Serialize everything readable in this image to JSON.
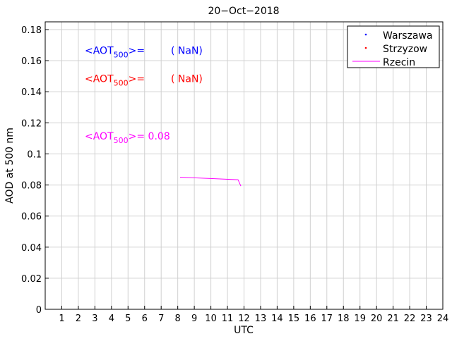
{
  "chart_data": {
    "type": "line",
    "title": "20−Oct−2018",
    "xlabel": "UTC",
    "ylabel": "AOD at 500 nm",
    "xlim": [
      0,
      24
    ],
    "ylim": [
      0,
      0.185
    ],
    "xticks": [
      1,
      2,
      3,
      4,
      5,
      6,
      7,
      8,
      9,
      10,
      11,
      12,
      13,
      14,
      15,
      16,
      17,
      18,
      19,
      20,
      21,
      22,
      23,
      24
    ],
    "yticks": [
      0,
      0.02,
      0.04,
      0.06,
      0.08,
      0.1,
      0.12,
      0.14,
      0.16,
      0.18
    ],
    "ytick_labels": [
      "0",
      "0.02",
      "0.04",
      "0.06",
      "0.08",
      "0.1",
      "0.12",
      "0.14",
      "0.16",
      "0.18"
    ],
    "grid": true,
    "legend_position": "top-right",
    "series": [
      {
        "name": "Warszawa",
        "color": "#0000ff",
        "marker": "dot",
        "x": [],
        "y": []
      },
      {
        "name": "Strzyzow",
        "color": "#ff0000",
        "marker": "dot",
        "x": [],
        "y": []
      },
      {
        "name": "Rzecin",
        "color": "#ff00ff",
        "marker": "line",
        "x": [
          8.14,
          11.64,
          11.81
        ],
        "y": [
          0.085,
          0.0834,
          0.0793
        ]
      }
    ],
    "annotations": [
      {
        "prefix": "<AOT",
        "sub": "500",
        "suffix": ">=",
        "value": "( NaN)",
        "color": "#0000ff",
        "y": 0.167
      },
      {
        "prefix": "<AOT",
        "sub": "500",
        "suffix": ">=",
        "value": "( NaN)",
        "color": "#ff0000",
        "y": 0.149
      },
      {
        "prefix": "<AOT",
        "sub": "500",
        "suffix": ">= 0.08",
        "value": "",
        "color": "#ff00ff",
        "y": 0.112
      }
    ]
  }
}
